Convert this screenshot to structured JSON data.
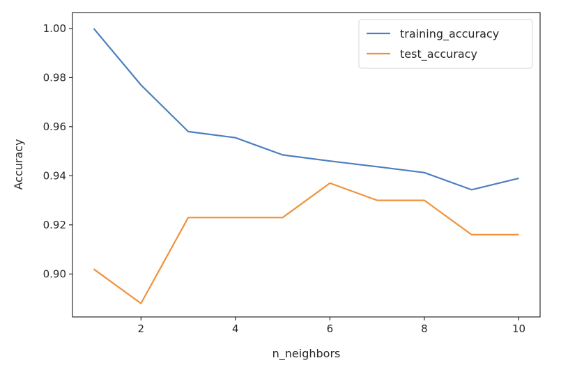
{
  "chart_data": {
    "type": "line",
    "xlabel": "n_neighbors",
    "ylabel": "Accuracy",
    "x": [
      1,
      2,
      3,
      4,
      5,
      6,
      7,
      8,
      9,
      10
    ],
    "xlim": [
      0.55,
      10.45
    ],
    "ylim": [
      0.8825,
      1.0065
    ],
    "xticks": [
      2,
      4,
      6,
      8,
      10
    ],
    "yticks": [
      0.9,
      0.92,
      0.94,
      0.96,
      0.98,
      1.0
    ],
    "ytick_labels": [
      "0.90",
      "0.92",
      "0.94",
      "0.96",
      "0.98",
      "1.00"
    ],
    "grid": false,
    "legend_position": "top-right",
    "series": [
      {
        "name": "training_accuracy",
        "color": "#4c7fbf",
        "values": [
          1.0,
          0.977,
          0.958,
          0.9555,
          0.9485,
          0.946,
          0.9437,
          0.9413,
          0.9343,
          0.939
        ]
      },
      {
        "name": "test_accuracy",
        "color": "#f0913a",
        "values": [
          0.902,
          0.888,
          0.923,
          0.923,
          0.923,
          0.937,
          0.93,
          0.93,
          0.916,
          0.916
        ]
      }
    ]
  }
}
